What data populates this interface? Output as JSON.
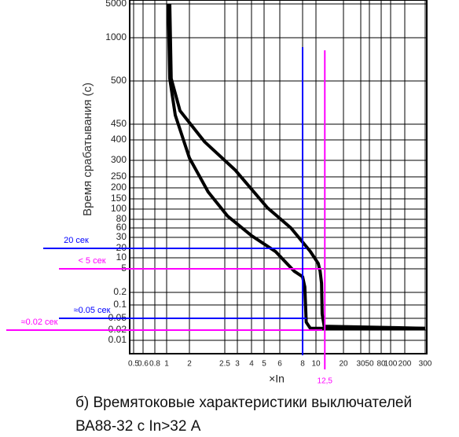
{
  "chart_data": {
    "type": "line",
    "y_label": "Время срабатывания (с)",
    "x_label": "×In",
    "caption": [
      "б) Времятоковые характеристики выключателей",
      "ВА88-32 с In>32 А"
    ],
    "log_scale": true,
    "grid": true,
    "xlim": [
      0.5,
      300
    ],
    "ylim": [
      0.01,
      5000
    ],
    "xticks": [
      0.5,
      0.6,
      0.8,
      1,
      2,
      2.5,
      3,
      4,
      5,
      6,
      8,
      10,
      20,
      30,
      50,
      80,
      100,
      200,
      300
    ],
    "yticks": [
      5000,
      1000,
      500,
      450,
      400,
      300,
      250,
      200,
      150,
      100,
      80,
      60,
      30,
      20,
      10,
      5,
      0.2,
      0.1,
      0.05,
      0.02,
      0.01
    ],
    "series": [
      {
        "color": "#000000",
        "x": [
          1.05,
          1.1,
          1.3,
          2,
          2.25,
          2.6,
          4,
          5.7,
          7.2,
          8,
          8.3,
          8.5,
          9.1,
          300
        ],
        "values": [
          5000,
          520,
          460,
          310,
          180,
          86,
          34,
          16,
          3.6,
          1.7,
          0.42,
          0.037,
          0.023,
          0.023
        ]
      },
      {
        "color": "#000000",
        "x": [
          1.1,
          1.15,
          1.5,
          2.2,
          2.9,
          5.2,
          6.9,
          9.1,
          10.6,
          11.1,
          11.5,
          11.7,
          12.3,
          300
        ],
        "values": [
          5000,
          520,
          465,
          390,
          270,
          105,
          60,
          16,
          7,
          3.6,
          0.72,
          0.062,
          0.027,
          0.023
        ]
      }
    ],
    "reference_lines": [
      {
        "axis": "y",
        "value": 20,
        "label": "20 сек",
        "color": "#0000ff"
      },
      {
        "axis": "y",
        "value": 5,
        "label": "< 5 сек",
        "color": "#ff00ff"
      },
      {
        "axis": "y",
        "value": 0.05,
        "label": "≈0.05 сек",
        "color": "#0000ff"
      },
      {
        "axis": "y",
        "value": 0.02,
        "label": "≈0.02 сек",
        "color": "#ff00ff"
      },
      {
        "axis": "x",
        "value": 8,
        "color": "#0000ff"
      },
      {
        "axis": "x",
        "value": 12.5,
        "label": "12,5",
        "color": "#ff00ff"
      }
    ]
  }
}
